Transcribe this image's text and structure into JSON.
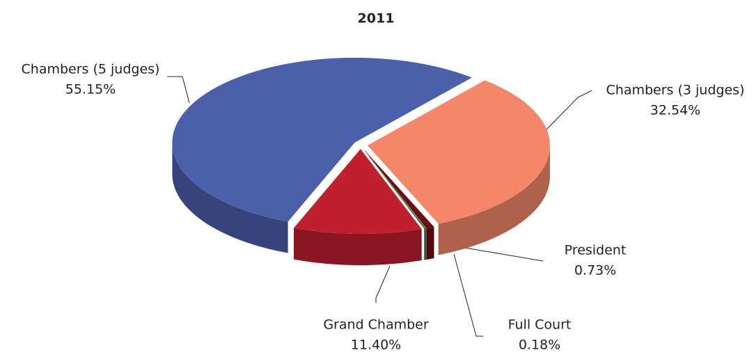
{
  "chart_data": {
    "type": "pie3d",
    "title": "2011",
    "categories": [
      "Chambers (3 judges)",
      "President",
      "Full Court",
      "Grand Chamber",
      "Chambers (5 judges)"
    ],
    "values": [
      32.54,
      0.73,
      0.18,
      11.4,
      55.15
    ],
    "value_labels": [
      "32.54%",
      "0.73%",
      "0.18%",
      "11.40%",
      "55.15%"
    ],
    "colors": [
      "#f4876a",
      "#6b0d12",
      "#2e8b2e",
      "#c01f30",
      "#4c5fab"
    ]
  }
}
